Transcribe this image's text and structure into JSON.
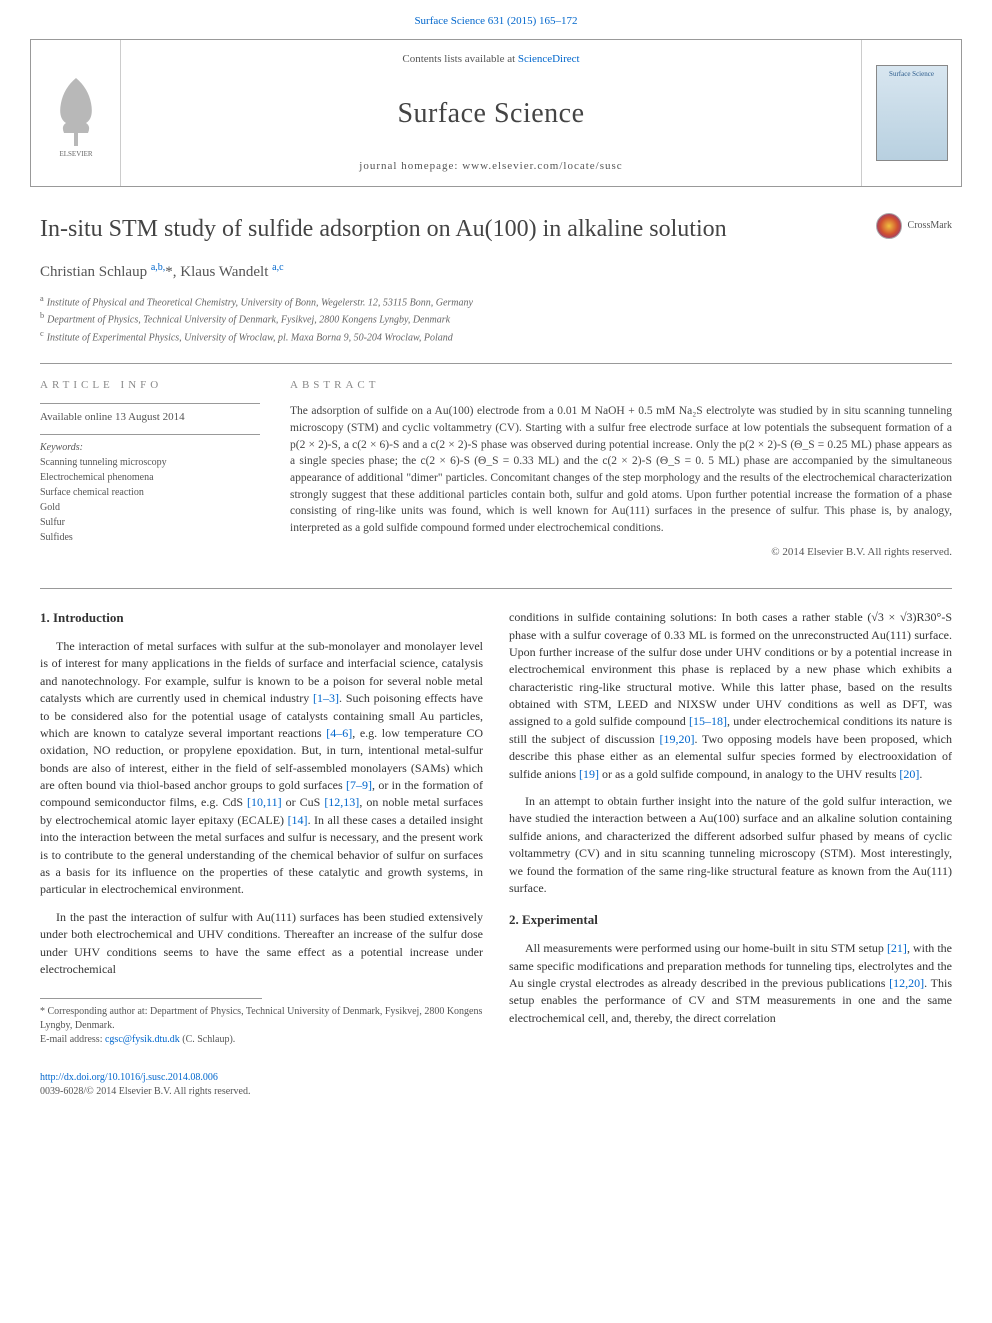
{
  "top_ref": "Surface Science 631 (2015) 165–172",
  "header": {
    "contents_prefix": "Contents lists available at ",
    "contents_link": "ScienceDirect",
    "journal": "Surface Science",
    "homepage": "journal homepage: www.elsevier.com/locate/susc",
    "cover_label": "Surface Science"
  },
  "title": "In-situ STM study of sulfide adsorption on Au(100) in alkaline solution",
  "crossmark_label": "CrossMark",
  "authors_html": "Christian Schlaup <sup>a,b,</sup>*, Klaus Wandelt <sup>a,c</sup>",
  "affiliations": [
    {
      "sup": "a",
      "text": "Institute of Physical and Theoretical Chemistry, University of Bonn, Wegelerstr. 12, 53115 Bonn, Germany"
    },
    {
      "sup": "b",
      "text": "Department of Physics, Technical University of Denmark, Fysikvej, 2800 Kongens Lyngby, Denmark"
    },
    {
      "sup": "c",
      "text": "Institute of Experimental Physics, University of Wroclaw, pl. Maxa Borna 9, 50-204 Wroclaw, Poland"
    }
  ],
  "info": {
    "label": "article info",
    "available": "Available online 13 August 2014",
    "keywords_label": "Keywords:",
    "keywords": [
      "Scanning tunneling microscopy",
      "Electrochemical phenomena",
      "Surface chemical reaction",
      "Gold",
      "Sulfur",
      "Sulfides"
    ]
  },
  "abstract": {
    "label": "abstract",
    "text": "The adsorption of sulfide on a Au(100) electrode from a 0.01 M NaOH + 0.5 mM Na₂S electrolyte was studied by in situ scanning tunneling microscopy (STM) and cyclic voltammetry (CV). Starting with a sulfur free electrode surface at low potentials the subsequent formation of a p(2 × 2)-S, a c(2 × 6)-S and a c(2 × 2)-S phase was observed during potential increase. Only the p(2 × 2)-S (Θ_S = 0.25 ML) phase appears as a single species phase; the c(2 × 6)-S (Θ_S = 0.33 ML) and the c(2 × 2)-S (Θ_S = 0. 5 ML) phase are accompanied by the simultaneous appearance of additional \"dimer\" particles. Concomitant changes of the step morphology and the results of the electrochemical characterization strongly suggest that these additional particles contain both, sulfur and gold atoms. Upon further potential increase the formation of a phase consisting of ring-like units was found, which is well known for Au(111) surfaces in the presence of sulfur. This phase is, by analogy, interpreted as a gold sulfide compound formed under electrochemical conditions.",
    "copyright": "© 2014 Elsevier B.V. All rights reserved."
  },
  "body": {
    "left": {
      "heading": "1. Introduction",
      "p1": "The interaction of metal surfaces with sulfur at the sub-monolayer and monolayer level is of interest for many applications in the fields of surface and interfacial science, catalysis and nanotechnology. For example, sulfur is known to be a poison for several noble metal catalysts which are currently used in chemical industry [1–3]. Such poisoning effects have to be considered also for the potential usage of catalysts containing small Au particles, which are known to catalyze several important reactions [4–6], e.g. low temperature CO oxidation, NO reduction, or propylene epoxidation. But, in turn, intentional metal-sulfur bonds are also of interest, either in the field of self-assembled monolayers (SAMs) which are often bound via thiol-based anchor groups to gold surfaces [7–9], or in the formation of compound semiconductor films, e.g. CdS [10,11] or CuS [12,13], on noble metal surfaces by electrochemical atomic layer epitaxy (ECALE) [14]. In all these cases a detailed insight into the interaction between the metal surfaces and sulfur is necessary, and the present work is to contribute to the general understanding of the chemical behavior of sulfur on surfaces as a basis for its influence on the properties of these catalytic and growth systems, in particular in electrochemical environment.",
      "p2": "In the past the interaction of sulfur with Au(111) surfaces has been studied extensively under both electrochemical and UHV conditions. Thereafter an increase of the sulfur dose under UHV conditions seems to have the same effect as a potential increase under electrochemical"
    },
    "right": {
      "p1": "conditions in sulfide containing solutions: In both cases a rather stable (√3 × √3)R30°-S phase with a sulfur coverage of 0.33 ML is formed on the unreconstructed Au(111) surface. Upon further increase of the sulfur dose under UHV conditions or by a potential increase in electrochemical environment this phase is replaced by a new phase which exhibits a characteristic ring-like structural motive. While this latter phase, based on the results obtained with STM, LEED and NIXSW under UHV conditions as well as DFT, was assigned to a gold sulfide compound [15–18], under electrochemical conditions its nature is still the subject of discussion [19,20]. Two opposing models have been proposed, which describe this phase either as an elemental sulfur species formed by electrooxidation of sulfide anions [19] or as a gold sulfide compound, in analogy to the UHV results [20].",
      "p2": "In an attempt to obtain further insight into the nature of the gold sulfur interaction, we have studied the interaction between a Au(100) surface and an alkaline solution containing sulfide anions, and characterized the different adsorbed sulfur phased by means of cyclic voltammetry (CV) and in situ scanning tunneling microscopy (STM). Most interestingly, we found the formation of the same ring-like structural feature as known from the Au(111) surface.",
      "heading2": "2. Experimental",
      "p3": "All measurements were performed using our home-built in situ STM setup [21], with the same specific modifications and preparation methods for tunneling tips, electrolytes and the Au single crystal electrodes as already described in the previous publications [12,20]. This setup enables the performance of CV and STM measurements in one and the same electrochemical cell, and, thereby, the direct correlation"
    }
  },
  "footnote": {
    "corr": "* Corresponding author at: Department of Physics, Technical University of Denmark, Fysikvej, 2800 Kongens Lyngby, Denmark.",
    "email_label": "E-mail address: ",
    "email": "cgsc@fysik.dtu.dk",
    "email_who": " (C. Schlaup)."
  },
  "footer": {
    "doi": "http://dx.doi.org/10.1016/j.susc.2014.08.006",
    "issn": "0039-6028/© 2014 Elsevier B.V. All rights reserved."
  },
  "refs": {
    "r1_3": "[1–3]",
    "r4_6": "[4–6]",
    "r7_9": "[7–9]",
    "r10_11": "[10,11]",
    "r12_13": "[12,13]",
    "r14": "[14]",
    "r15_18": "[15–18]",
    "r19_20": "[19,20]",
    "r19": "[19]",
    "r20": "[20]",
    "r21": "[21]",
    "r12_20": "[12,20]"
  }
}
